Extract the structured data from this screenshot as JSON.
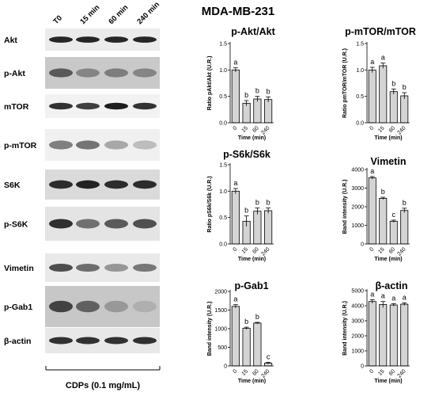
{
  "figure_title": "MDA-MB-231",
  "blot": {
    "time_labels": [
      "T0",
      "15 min",
      "60 min",
      "240 min"
    ],
    "treatment_label": "CDPs (0.1 mg/mL)",
    "rows": [
      {
        "label": "Akt",
        "bg": "#ebebeb",
        "band_color": "#111111",
        "intensity": [
          0.9,
          0.9,
          0.9,
          0.9
        ]
      },
      {
        "label": "p-Akt",
        "bg": "#c9c9c9",
        "band_color": "#333333",
        "intensity": [
          0.75,
          0.45,
          0.5,
          0.45
        ]
      },
      {
        "label": "mTOR",
        "bg": "#f2f2f2",
        "band_color": "#111111",
        "intensity": [
          0.85,
          0.8,
          0.95,
          0.85
        ]
      },
      {
        "label": "p-mTOR",
        "bg": "#f0f0f0",
        "band_color": "#222222",
        "intensity": [
          0.55,
          0.6,
          0.35,
          0.25
        ]
      },
      {
        "label": "S6K",
        "bg": "#dadada",
        "band_color": "#0d0d0d",
        "intensity": [
          0.85,
          0.9,
          0.85,
          0.85
        ]
      },
      {
        "label": "p-S6K",
        "bg": "#e4e4e4",
        "band_color": "#111111",
        "intensity": [
          0.85,
          0.55,
          0.65,
          0.7
        ]
      },
      {
        "label": "Vimetin",
        "bg": "#e9e9e9",
        "band_color": "#1a1a1a",
        "intensity": [
          0.75,
          0.6,
          0.4,
          0.55
        ]
      },
      {
        "label": "p-Gab1",
        "bg": "#c7c7c7",
        "band_color": "#2a2a2a",
        "intensity": [
          0.85,
          0.65,
          0.3,
          0.15
        ]
      },
      {
        "label": "β-actin",
        "bg": "#e8e8e8",
        "band_color": "#111111",
        "intensity": [
          0.85,
          0.85,
          0.85,
          0.85
        ]
      }
    ]
  },
  "chart_data": [
    {
      "type": "bar",
      "title": "p-Akt/Akt",
      "xlabel": "Time (min)",
      "ylabel": "Ratio pAkt/Akt (U.R.)",
      "categories": [
        "0",
        "15",
        "60",
        "240"
      ],
      "values": [
        1.0,
        0.37,
        0.45,
        0.44
      ],
      "errors": [
        0.04,
        0.05,
        0.05,
        0.05
      ],
      "significance": [
        "a",
        "b",
        "b",
        "b"
      ],
      "ylim": [
        0,
        1.5
      ],
      "yticks": [
        0.0,
        0.5,
        1.0,
        1.5
      ],
      "ytick_labels": [
        "0.0",
        "0.5",
        "1.0",
        "1.5"
      ]
    },
    {
      "type": "bar",
      "title": "p-mTOR/mTOR",
      "xlabel": "Time (min)",
      "ylabel": "Ratio pmTOR/mTOR (U.R.)",
      "categories": [
        "0",
        "15",
        "60",
        "240"
      ],
      "values": [
        1.0,
        1.08,
        0.59,
        0.51
      ],
      "errors": [
        0.05,
        0.05,
        0.05,
        0.06
      ],
      "significance": [
        "a",
        "a",
        "b",
        "b"
      ],
      "ylim": [
        0,
        1.5
      ],
      "yticks": [
        0.0,
        0.5,
        1.0,
        1.5
      ],
      "ytick_labels": [
        "0.0",
        "0.5",
        "1.0",
        "1.5"
      ]
    },
    {
      "type": "bar",
      "title": "p-S6k/S6k",
      "xlabel": "Time (min)",
      "ylabel": "Ratio pS6k/S6k (U.R.)",
      "categories": [
        "0",
        "15",
        "60",
        "240"
      ],
      "values": [
        1.0,
        0.43,
        0.62,
        0.63
      ],
      "errors": [
        0.05,
        0.1,
        0.06,
        0.05
      ],
      "significance": [
        "a",
        "b",
        "b",
        "b"
      ],
      "ylim": [
        0,
        1.5
      ],
      "yticks": [
        0.0,
        0.5,
        1.0,
        1.5
      ],
      "ytick_labels": [
        "0.0",
        "0.5",
        "1.0",
        "1.5"
      ]
    },
    {
      "type": "bar",
      "title": "Vimetin",
      "xlabel": "Time (min)",
      "ylabel": "Band intensity (U.R.)",
      "categories": [
        "0",
        "15",
        "60",
        "240"
      ],
      "values": [
        3550,
        2450,
        1220,
        1800
      ],
      "errors": [
        70,
        60,
        60,
        120
      ],
      "significance": [
        "a",
        "b",
        "c",
        "b"
      ],
      "ylim": [
        0,
        4000
      ],
      "yticks": [
        0,
        1000,
        2000,
        3000,
        4000
      ],
      "ytick_labels": [
        "0",
        "1000",
        "2000",
        "3000",
        "4000"
      ]
    },
    {
      "type": "bar",
      "title": "p-Gab1",
      "xlabel": "Time (min)",
      "ylabel": "Band intensity (U.R.)",
      "categories": [
        "0",
        "15",
        "60",
        "240"
      ],
      "values": [
        1600,
        1010,
        1150,
        75
      ],
      "errors": [
        45,
        30,
        20,
        20
      ],
      "significance": [
        "a",
        "b",
        "b",
        "c"
      ],
      "ylim": [
        0,
        2000
      ],
      "yticks": [
        0,
        500,
        1000,
        1500,
        2000
      ],
      "ytick_labels": [
        "0",
        "500",
        "1000",
        "1500",
        "2000"
      ]
    },
    {
      "type": "bar",
      "title": "β-actin",
      "xlabel": "Time (min)",
      "ylabel": "Band intensity (U.R.)",
      "categories": [
        "0",
        "15",
        "60",
        "240"
      ],
      "values": [
        4280,
        4080,
        4050,
        4100
      ],
      "errors": [
        120,
        200,
        80,
        90
      ],
      "significance": [
        "a",
        "a",
        "a",
        "a"
      ],
      "ylim": [
        0,
        5000
      ],
      "yticks": [
        0,
        1000,
        2000,
        3000,
        4000,
        5000
      ],
      "ytick_labels": [
        "0",
        "1000",
        "2000",
        "3000",
        "4000",
        "5000"
      ]
    }
  ],
  "colors": {
    "bar_fill": "#d4d4d4",
    "bar_stroke": "#000000"
  }
}
